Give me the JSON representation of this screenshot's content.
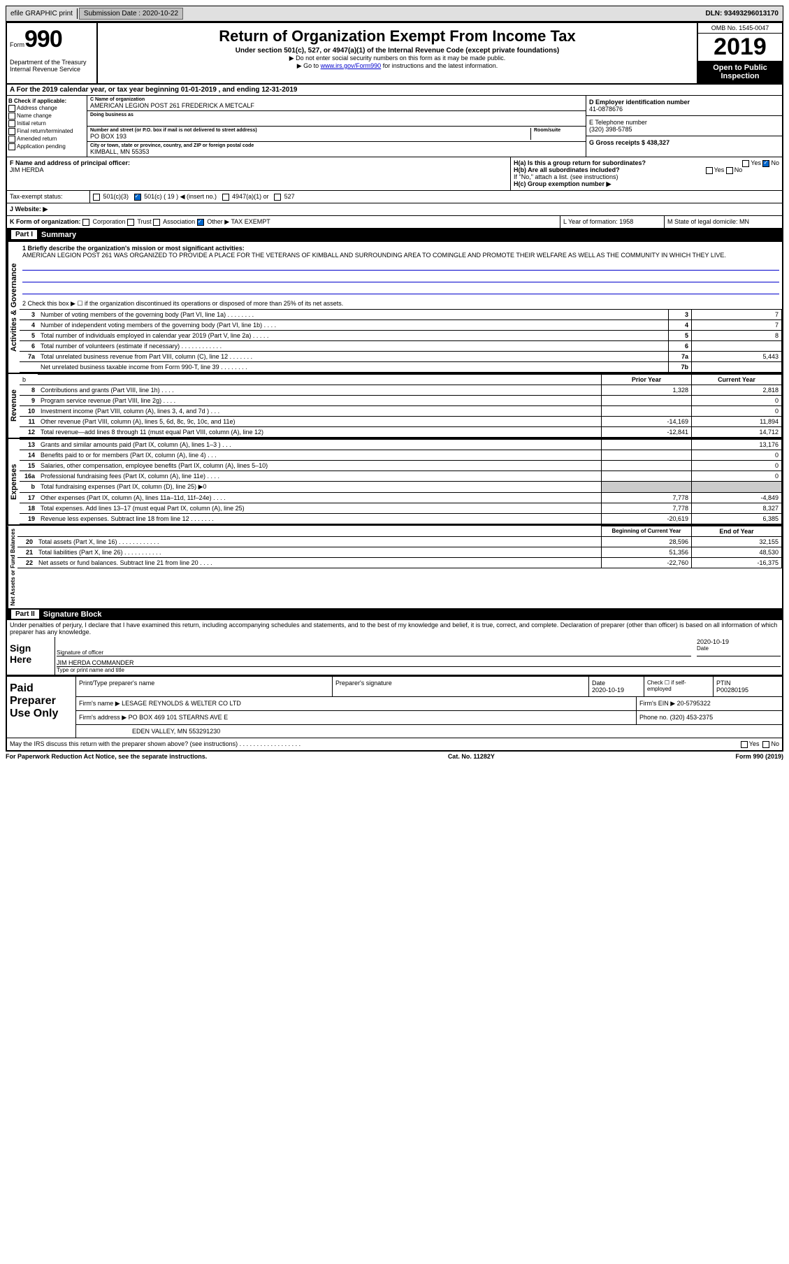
{
  "topbar": {
    "efile": "efile GRAPHIC print",
    "submission_label": "Submission Date : 2020-10-22",
    "dln": "DLN: 93493296013170"
  },
  "header": {
    "form_prefix": "Form",
    "form_number": "990",
    "dept": "Department of the Treasury\nInternal Revenue Service",
    "title": "Return of Organization Exempt From Income Tax",
    "subtitle": "Under section 501(c), 527, or 4947(a)(1) of the Internal Revenue Code (except private foundations)",
    "note1": "▶ Do not enter social security numbers on this form as it may be made public.",
    "note2_pre": "▶ Go to ",
    "note2_link": "www.irs.gov/Form990",
    "note2_post": " for instructions and the latest information.",
    "omb": "OMB No. 1545-0047",
    "year": "2019",
    "open": "Open to Public Inspection"
  },
  "line_a": "A For the 2019 calendar year, or tax year beginning 01-01-2019   , and ending 12-31-2019",
  "section_b": {
    "check_label": "B Check if applicable:",
    "checks": [
      "Address change",
      "Name change",
      "Initial return",
      "Final return/terminated",
      "Amended return",
      "Application pending"
    ],
    "c_label": "C Name of organization",
    "org_name": "AMERICAN LEGION POST 261 FREDERICK A METCALF",
    "dba_label": "Doing business as",
    "addr_label": "Number and street (or P.O. box if mail is not delivered to street address)",
    "room_label": "Room/suite",
    "addr": "PO BOX 193",
    "city_label": "City or town, state or province, country, and ZIP or foreign postal code",
    "city": "KIMBALL, MN  55353",
    "d_label": "D Employer identification number",
    "ein": "41-0878676",
    "e_label": "E Telephone number",
    "phone": "(320) 398-5785",
    "g_label": "G Gross receipts $ 438,327"
  },
  "section_f": {
    "f_label": "F  Name and address of principal officer:",
    "officer": "JIM HERDA",
    "ha_label": "H(a)  Is this a group return for subordinates?",
    "hb_label": "H(b)  Are all subordinates included?",
    "hb_note": "If \"No,\" attach a list. (see instructions)",
    "hc_label": "H(c)  Group exemption number ▶"
  },
  "tax_exempt": {
    "label": "Tax-exempt status:",
    "opt1": "501(c)(3)",
    "opt2": "501(c) ( 19 ) ◀ (insert no.)",
    "opt3": "4947(a)(1) or",
    "opt4": "527"
  },
  "website_label": "J   Website: ▶",
  "line_k": "K Form of organization:",
  "k_opts": [
    "Corporation",
    "Trust",
    "Association",
    "Other ▶ TAX EXEMPT"
  ],
  "l_label": "L Year of formation: 1958",
  "m_label": "M State of legal domicile: MN",
  "part1": {
    "title": "Summary",
    "partnum": "Part I",
    "q1": "1  Briefly describe the organization's mission or most significant activities:",
    "mission": "AMERICAN LEGION POST 261 WAS ORGANIZED TO PROVIDE A PLACE FOR THE VETERANS OF KIMBALL AND SURROUNDING AREA TO COMINGLE AND PROMOTE THEIR WELFARE AS WELL AS THE COMMUNITY IN WHICH THEY LIVE.",
    "q2": "2   Check this box ▶ ☐  if the organization discontinued its operations or disposed of more than 25% of its net assets.",
    "rows_gov": [
      {
        "n": "3",
        "t": "Number of voting members of the governing body (Part VI, line 1a)  .   .   .   .   .   .   .   .",
        "box": "3",
        "v": "7"
      },
      {
        "n": "4",
        "t": "Number of independent voting members of the governing body (Part VI, line 1b)  .   .   .   .",
        "box": "4",
        "v": "7"
      },
      {
        "n": "5",
        "t": "Total number of individuals employed in calendar year 2019 (Part V, line 2a)  .   .   .   .   .",
        "box": "5",
        "v": "8"
      },
      {
        "n": "6",
        "t": "Total number of volunteers (estimate if necessary)   .   .   .   .   .   .   .   .   .   .   .   .",
        "box": "6",
        "v": ""
      },
      {
        "n": "7a",
        "t": "Total unrelated business revenue from Part VIII, column (C), line 12  .   .   .   .   .   .   .",
        "box": "7a",
        "v": "5,443"
      },
      {
        "n": "",
        "t": "Net unrelated business taxable income from Form 990-T, line 39   .   .   .   .   .   .   .   .",
        "box": "7b",
        "v": ""
      }
    ],
    "col_prior": "Prior Year",
    "col_current": "Current Year",
    "rows_rev": [
      {
        "n": "8",
        "t": "Contributions and grants (Part VIII, line 1h)   .   .   .   .",
        "p": "1,328",
        "c": "2,818"
      },
      {
        "n": "9",
        "t": "Program service revenue (Part VIII, line 2g)   .   .   .   .",
        "p": "",
        "c": "0"
      },
      {
        "n": "10",
        "t": "Investment income (Part VIII, column (A), lines 3, 4, and 7d )   .   .   .",
        "p": "",
        "c": "0"
      },
      {
        "n": "11",
        "t": "Other revenue (Part VIII, column (A), lines 5, 6d, 8c, 9c, 10c, and 11e)",
        "p": "-14,169",
        "c": "11,894"
      },
      {
        "n": "12",
        "t": "Total revenue—add lines 8 through 11 (must equal Part VIII, column (A), line 12)",
        "p": "-12,841",
        "c": "14,712"
      }
    ],
    "rows_exp": [
      {
        "n": "13",
        "t": "Grants and similar amounts paid (Part IX, column (A), lines 1–3 )  .   .   .",
        "p": "",
        "c": "13,176"
      },
      {
        "n": "14",
        "t": "Benefits paid to or for members (Part IX, column (A), line 4)   .   .   .",
        "p": "",
        "c": "0"
      },
      {
        "n": "15",
        "t": "Salaries, other compensation, employee benefits (Part IX, column (A), lines 5–10)",
        "p": "",
        "c": "0"
      },
      {
        "n": "16a",
        "t": "Professional fundraising fees (Part IX, column (A), line 11e)  .   .   .   .",
        "p": "",
        "c": "0"
      },
      {
        "n": "b",
        "t": "Total fundraising expenses (Part IX, column (D), line 25) ▶0",
        "p": "SHADE",
        "c": "SHADE"
      },
      {
        "n": "17",
        "t": "Other expenses (Part IX, column (A), lines 11a–11d, 11f–24e)   .   .   .   .",
        "p": "7,778",
        "c": "-4,849"
      },
      {
        "n": "18",
        "t": "Total expenses. Add lines 13–17 (must equal Part IX, column (A), line 25)",
        "p": "7,778",
        "c": "8,327"
      },
      {
        "n": "19",
        "t": "Revenue less expenses. Subtract line 18 from line 12  .   .   .   .   .   .   .",
        "p": "-20,619",
        "c": "6,385"
      }
    ],
    "col_begin": "Beginning of Current Year",
    "col_end": "End of Year",
    "rows_net": [
      {
        "n": "20",
        "t": "Total assets (Part X, line 16)  .   .   .   .   .   .   .   .   .   .   .   .",
        "p": "28,596",
        "c": "32,155"
      },
      {
        "n": "21",
        "t": "Total liabilities (Part X, line 26)  .   .   .   .   .   .   .   .   .   .   .",
        "p": "51,356",
        "c": "48,530"
      },
      {
        "n": "22",
        "t": "Net assets or fund balances. Subtract line 21 from line 20  .   .   .   .",
        "p": "-22,760",
        "c": "-16,375"
      }
    ],
    "vlabels": {
      "gov": "Activities & Governance",
      "rev": "Revenue",
      "exp": "Expenses",
      "net": "Net Assets or Fund Balances"
    }
  },
  "part2": {
    "partnum": "Part II",
    "title": "Signature Block",
    "penalty": "Under penalties of perjury, I declare that I have examined this return, including accompanying schedules and statements, and to the best of my knowledge and belief, it is true, correct, and complete. Declaration of preparer (other than officer) is based on all information of which preparer has any knowledge.",
    "sign_here": "Sign Here",
    "sig_officer": "Signature of officer",
    "sig_date": "2020-10-19",
    "date_label": "Date",
    "name_title": "JIM HERDA COMMANDER",
    "type_label": "Type or print name and title",
    "paid_label": "Paid Preparer Use Only",
    "prep_name_label": "Print/Type preparer's name",
    "prep_sig_label": "Preparer's signature",
    "prep_date": "2020-10-19",
    "check_self": "Check ☐ if self-employed",
    "ptin_label": "PTIN",
    "ptin": "P00280195",
    "firm_name_label": "Firm's name    ▶",
    "firm_name": "LESAGE REYNOLDS & WELTER CO LTD",
    "firm_ein_label": "Firm's EIN ▶",
    "firm_ein": "20-5795322",
    "firm_addr_label": "Firm's address ▶",
    "firm_addr": "PO BOX 469 101 STEARNS AVE E",
    "firm_addr2": "EDEN VALLEY, MN  553291230",
    "firm_phone_label": "Phone no.",
    "firm_phone": "(320) 453-2375",
    "discuss": "May the IRS discuss this return with the preparer shown above? (see instructions)   .   .   .   .   .   .   .   .   .   .   .   .   .   .   .   .   .   .",
    "yes": "Yes",
    "no": "No"
  },
  "footer": {
    "paperwork": "For Paperwork Reduction Act Notice, see the separate instructions.",
    "cat": "Cat. No. 11282Y",
    "form": "Form 990 (2019)"
  }
}
